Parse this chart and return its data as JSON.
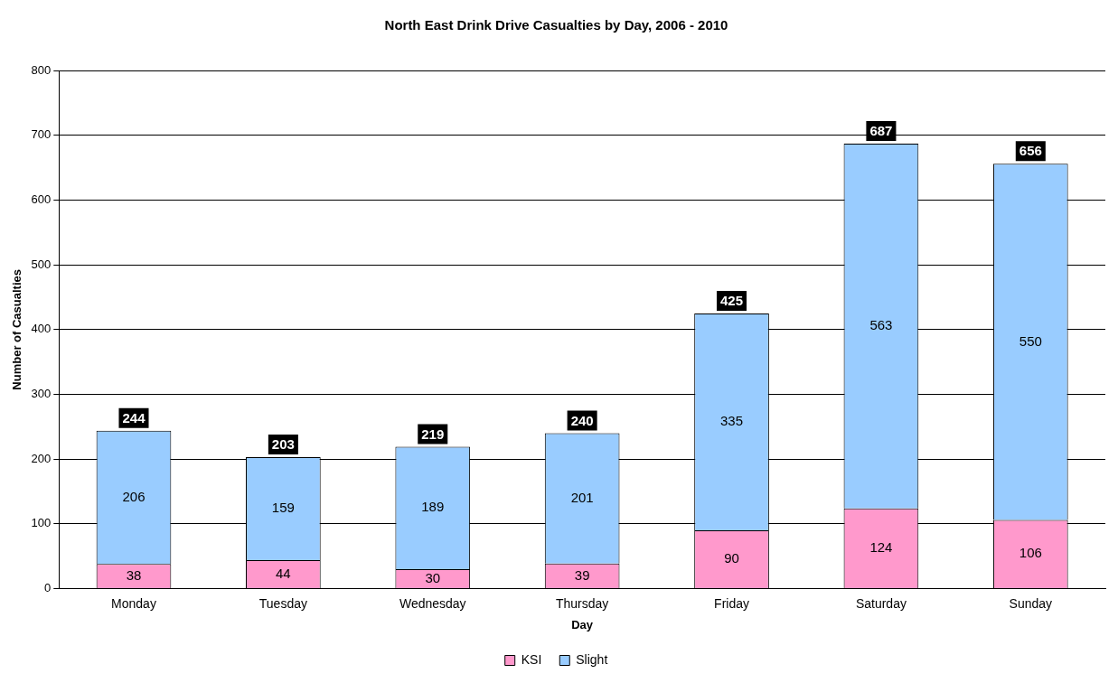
{
  "chart_data": {
    "type": "bar",
    "title": "North East Drink Drive Casualties by Day, 2006 - 2010",
    "xlabel": "Day",
    "ylabel": "Number of Casualties",
    "categories": [
      "Monday",
      "Tuesday",
      "Wednesday",
      "Thursday",
      "Friday",
      "Saturday",
      "Sunday"
    ],
    "series": [
      {
        "name": "KSI",
        "color": "#ff99cc",
        "values": [
          38,
          44,
          30,
          39,
          90,
          124,
          106
        ]
      },
      {
        "name": "Slight",
        "color": "#99ccff",
        "values": [
          206,
          159,
          189,
          201,
          335,
          563,
          550
        ]
      }
    ],
    "stacked": true,
    "data_labels": true,
    "totals": [
      "244",
      "203",
      "219",
      "240",
      "425",
      "687",
      "656"
    ],
    "ylim": [
      0,
      800
    ],
    "yticks": [
      0,
      100,
      200,
      300,
      400,
      500,
      600,
      700,
      800
    ],
    "grid": "y",
    "legend": "bottom"
  }
}
